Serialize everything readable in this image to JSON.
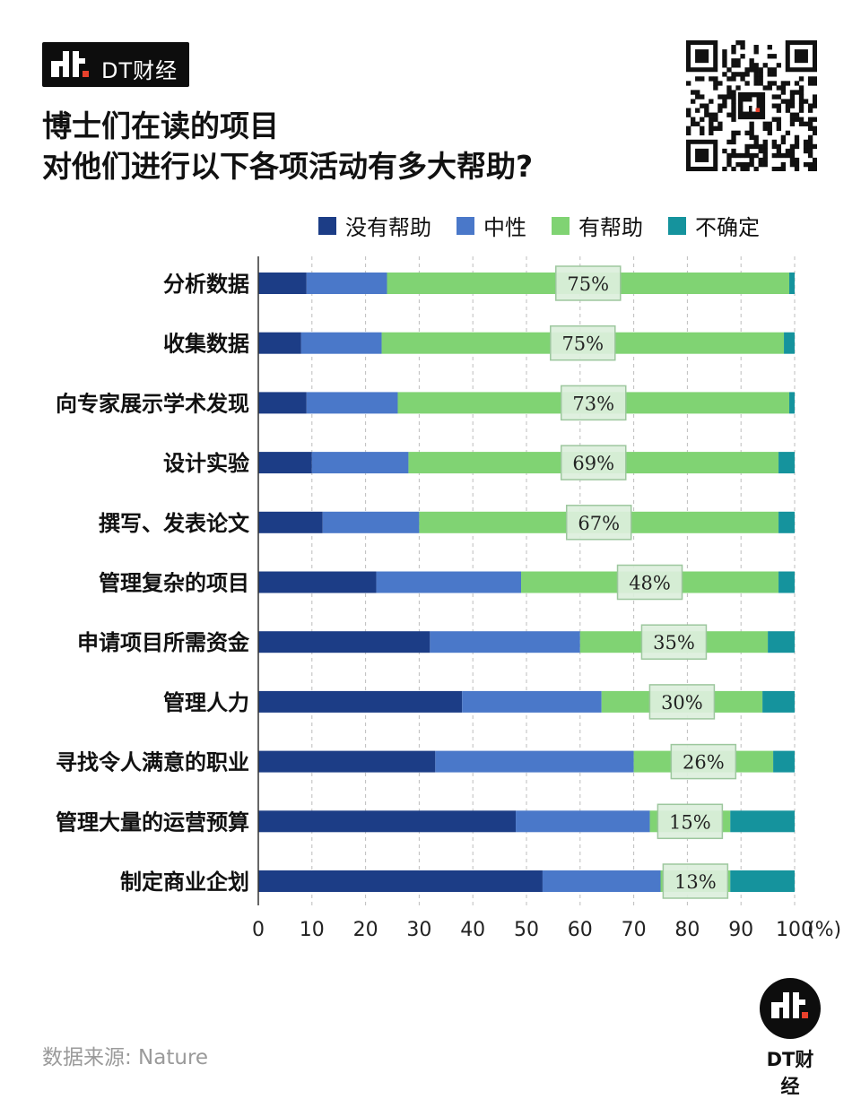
{
  "brand": {
    "name": "DT财经",
    "footer_name": "DT财经"
  },
  "title": {
    "line1": "博士们在读的项目",
    "line2": "对他们进行以下各项活动有多大帮助?"
  },
  "source": "数据来源: Nature",
  "colors": {
    "not_helpful": "#1c3d86",
    "neutral": "#4a78c9",
    "helpful": "#80d373",
    "unsure": "#15939d",
    "label_bg": "#dcefdc",
    "label_border": "#9dc79e",
    "grid": "#bdbdbd",
    "axis": "#333333"
  },
  "chart_data": {
    "type": "bar",
    "orientation": "horizontal",
    "stacked": true,
    "categories": [
      "分析数据",
      "收集数据",
      "向专家展示学术发现",
      "设计实验",
      "撰写、发表论文",
      "管理复杂的项目",
      "申请项目所需资金",
      "管理人力",
      "寻找令人满意的职业",
      "管理大量的运营预算",
      "制定商业企划"
    ],
    "series": [
      {
        "name": "没有帮助",
        "color": "#1c3d86",
        "values": [
          9,
          8,
          9,
          10,
          12,
          22,
          32,
          38,
          33,
          48,
          53
        ]
      },
      {
        "name": "中性",
        "color": "#4a78c9",
        "values": [
          15,
          15,
          17,
          18,
          18,
          27,
          28,
          26,
          37,
          25,
          22
        ]
      },
      {
        "name": "有帮助",
        "color": "#80d373",
        "values": [
          75,
          75,
          73,
          69,
          67,
          48,
          35,
          30,
          26,
          15,
          13
        ]
      },
      {
        "name": "不确定",
        "color": "#15939d",
        "values": [
          1,
          2,
          1,
          3,
          3,
          3,
          5,
          6,
          4,
          12,
          12
        ]
      }
    ],
    "labels": [
      "75%",
      "75%",
      "73%",
      "69%",
      "67%",
      "48%",
      "35%",
      "30%",
      "26%",
      "15%",
      "13%"
    ],
    "x_ticks": [
      "0",
      "10",
      "20",
      "30",
      "40",
      "50",
      "60",
      "70",
      "80",
      "90",
      "100"
    ],
    "x_unit": "(%)",
    "xlim": [
      0,
      100
    ],
    "grid": "vertical dashed",
    "legend_position": "top-right"
  }
}
